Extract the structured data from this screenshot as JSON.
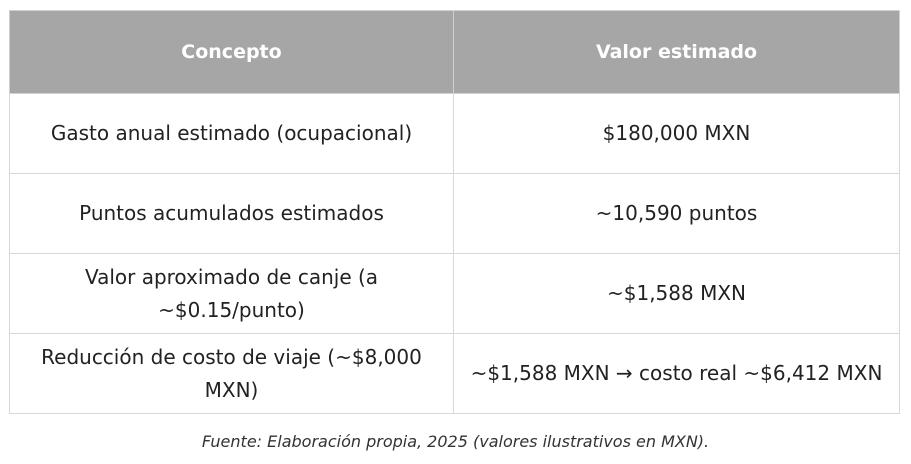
{
  "table": {
    "header": [
      "Concepto",
      "Valor estimado"
    ],
    "rows": [
      [
        "Gasto anual estimado (ocupacional)",
        "$180,000 MXN"
      ],
      [
        "Puntos acumulados estimados",
        "~10,590 puntos"
      ],
      [
        "Valor aproximado de canje (a ~$0.15/punto)",
        "~$1,588 MXN"
      ],
      [
        "Reducción de costo de viaje (~$8,000 MXN)",
        "~$1,588 MXN → costo real ~$6,412 MXN"
      ]
    ]
  },
  "caption": "Fuente: Elaboración propia, 2025 (valores ilustrativos en MXN)."
}
